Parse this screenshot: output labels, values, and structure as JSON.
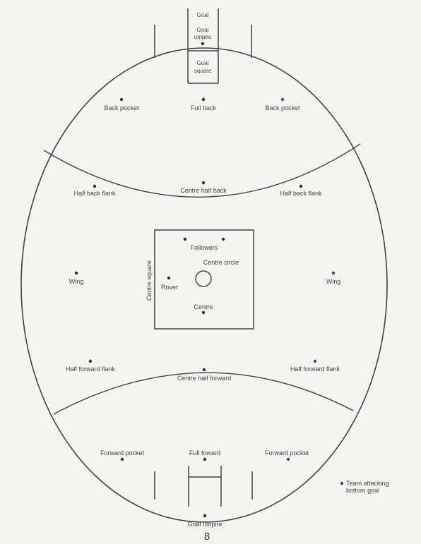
{
  "field": {
    "positions": [
      {
        "id": "back-pocket-left",
        "label": "Back pocket"
      },
      {
        "id": "full-back",
        "label": "Full back"
      },
      {
        "id": "back-pocket-right",
        "label": "Back pocket"
      },
      {
        "id": "centre-half-back",
        "label": "Centre half back"
      },
      {
        "id": "half-back-flank-left",
        "label": "Half back flank"
      },
      {
        "id": "half-back-flank-right",
        "label": "Half back flank"
      },
      {
        "id": "followers",
        "label": "Followers"
      },
      {
        "id": "centre-circle",
        "label": "Centre circle"
      },
      {
        "id": "rover",
        "label": "Rover"
      },
      {
        "id": "centre",
        "label": "Centre"
      },
      {
        "id": "wing-left",
        "label": "Wing"
      },
      {
        "id": "wing-right",
        "label": "Wing"
      },
      {
        "id": "half-forward-flank-left",
        "label": "Half forward flank"
      },
      {
        "id": "half-forward-flank-right",
        "label": "Half forward flank"
      },
      {
        "id": "centre-half-forward",
        "label": "Centre half forward"
      },
      {
        "id": "forward-pocket-left",
        "label": "Forward pocket"
      },
      {
        "id": "full-forward",
        "label": "Full foward"
      },
      {
        "id": "forward-pocket-right",
        "label": "Forward pocket"
      }
    ],
    "top_goal": {
      "goal": "Goal",
      "goal_umpire_1": "Goal",
      "goal_umpire_2": "umpire",
      "goal_square_1": "Goal",
      "goal_square_2": "square"
    },
    "bottom_goal_umpire": "Goal umpire",
    "centre_square": "Centre square"
  },
  "legend": {
    "line1": "Team attacking",
    "line2": "bottom goal"
  },
  "page_number": "8",
  "colors": {
    "line": "#3a4150",
    "team_dot_blue": "#2f4a8a",
    "dot_dark": "#2a2f3a"
  }
}
